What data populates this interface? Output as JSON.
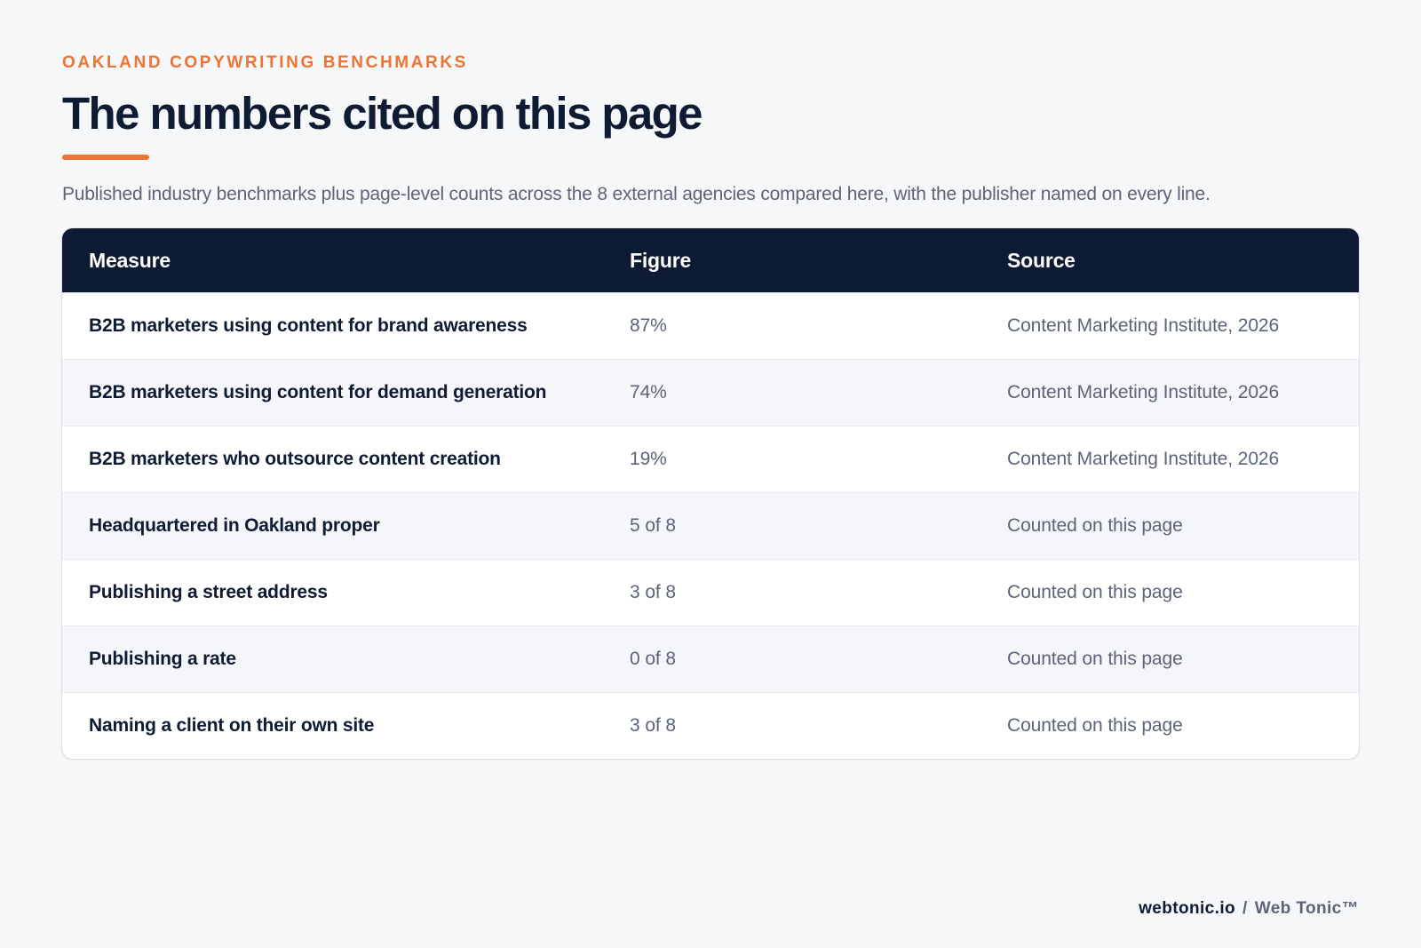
{
  "header": {
    "eyebrow": "OAKLAND COPYWRITING BENCHMARKS",
    "title": "The numbers cited on this page",
    "subtitle": "Published industry benchmarks plus page-level counts across the 8 external agencies compared here, with the publisher named on every line."
  },
  "table": {
    "columns": [
      "Measure",
      "Figure",
      "Source"
    ],
    "rows": [
      {
        "measure": "B2B marketers using content for brand awareness",
        "figure": "87%",
        "source": "Content Marketing Institute, 2026"
      },
      {
        "measure": "B2B marketers using content for demand generation",
        "figure": "74%",
        "source": "Content Marketing Institute, 2026"
      },
      {
        "measure": "B2B marketers who outsource content creation",
        "figure": "19%",
        "source": "Content Marketing Institute, 2026"
      },
      {
        "measure": "Headquartered in Oakland proper",
        "figure": "5 of 8",
        "source": "Counted on this page"
      },
      {
        "measure": "Publishing a street address",
        "figure": "3 of 8",
        "source": "Counted on this page"
      },
      {
        "measure": "Publishing a rate",
        "figure": "0 of 8",
        "source": "Counted on this page"
      },
      {
        "measure": "Naming a client on their own site",
        "figure": "3 of 8",
        "source": "Counted on this page"
      }
    ]
  },
  "footer": {
    "domain": "webtonic.io",
    "separator": "/",
    "brand": "Web Tonic™"
  },
  "colors": {
    "accent": "#ef7332",
    "header_bg": "#0c1a33",
    "text_dark": "#0f1b33",
    "text_muted": "#5b6577"
  }
}
